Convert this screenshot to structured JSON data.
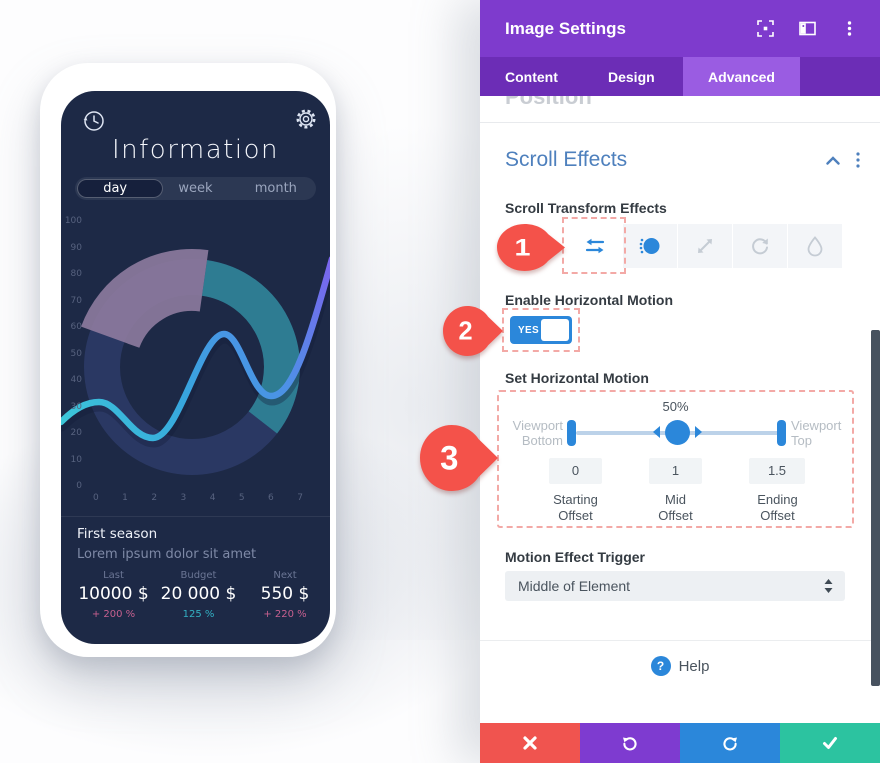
{
  "phone": {
    "title": "Information",
    "tabs": [
      "day",
      "week",
      "month"
    ],
    "active_tab": "day",
    "season": {
      "title": "First season",
      "subtitle": "Lorem ipsum dolor sit amet"
    },
    "stats": [
      {
        "label": "Last",
        "value": "10000 $",
        "delta": "+ 200 %"
      },
      {
        "label": "Budget",
        "value": "20 000 $",
        "delta": "125 %"
      },
      {
        "label": "Next",
        "value": "550 $",
        "delta": "+ 220 %"
      }
    ],
    "colors": {
      "screen_bg": "#1d2946",
      "ring_base": "#2b3a66",
      "ring_teal": "#2e8095",
      "ring_mauve": "#8e7b9e",
      "wave_start": "#3cc8d8",
      "wave_end": "#7b64ee",
      "delta_pink": "#c6608f",
      "delta_teal": "#33b0c3"
    }
  },
  "chart_data": {
    "type": "line",
    "title": "Information",
    "x_ticks": [
      "0",
      "1",
      "2",
      "3",
      "4",
      "5",
      "6",
      "7"
    ],
    "y_ticks": [
      "100",
      "90",
      "80",
      "70",
      "60",
      "50",
      "40",
      "30",
      "20",
      "10",
      "0"
    ],
    "ylim": [
      0,
      100
    ],
    "grid": false,
    "series": [
      {
        "name": "wave",
        "points": [
          [
            -1.3,
            25
          ],
          [
            0,
            31
          ],
          [
            1.8,
            19
          ],
          [
            4.4,
            57
          ],
          [
            6,
            34
          ],
          [
            8.2,
            87
          ]
        ]
      }
    ],
    "donut_segments": [
      {
        "name": "base-dark-blue",
        "color": "#2b3a66",
        "sweep_deg": 162
      },
      {
        "name": "teal",
        "color": "#2e8095",
        "sweep_deg": 120
      },
      {
        "name": "mauve",
        "color": "#8e7b9e",
        "sweep_deg": 78
      }
    ]
  },
  "modal": {
    "title": "Image Settings",
    "tabs": [
      {
        "label": "Content",
        "active": false
      },
      {
        "label": "Design",
        "active": false
      },
      {
        "label": "Advanced",
        "active": true
      }
    ],
    "position_heading": "Position",
    "scroll_effects_heading": "Scroll Effects",
    "transform_label": "Scroll Transform Effects",
    "effects": [
      {
        "name": "horizontal-motion",
        "state": "selected"
      },
      {
        "name": "fade",
        "state": "enabled"
      },
      {
        "name": "scale",
        "state": "inactive"
      },
      {
        "name": "rotate",
        "state": "inactive"
      },
      {
        "name": "blur",
        "state": "inactive"
      }
    ],
    "enable_label": "Enable Horizontal Motion",
    "toggle_value": "YES",
    "set_label": "Set Horizontal Motion",
    "slider": {
      "percent": "50%",
      "left_label": [
        "Viewport",
        "Bottom"
      ],
      "right_label": [
        "Viewport",
        "Top"
      ],
      "fields": [
        {
          "value": "0",
          "label": [
            "Starting",
            "Offset"
          ]
        },
        {
          "value": "1",
          "label": [
            "Mid",
            "Offset"
          ]
        },
        {
          "value": "1.5",
          "label": [
            "Ending",
            "Offset"
          ]
        }
      ]
    },
    "trigger_label": "Motion Effect Trigger",
    "trigger_value": "Middle of Element",
    "help_label": "Help",
    "pointers": [
      "1",
      "2",
      "3"
    ],
    "colors": {
      "accent": "#2b87da",
      "header": "#7e3bcd",
      "tabbar": "#6c2db6",
      "tab_active": "#9a5ce2",
      "section_blue": "#4e80bd",
      "pointer_red": "#f4524a",
      "dashed": "#f3a9a6",
      "footer_close": "#f0544f",
      "footer_undo": "#7e3bd0",
      "footer_redo": "#2b87da",
      "footer_save": "#2cc3a0"
    }
  }
}
